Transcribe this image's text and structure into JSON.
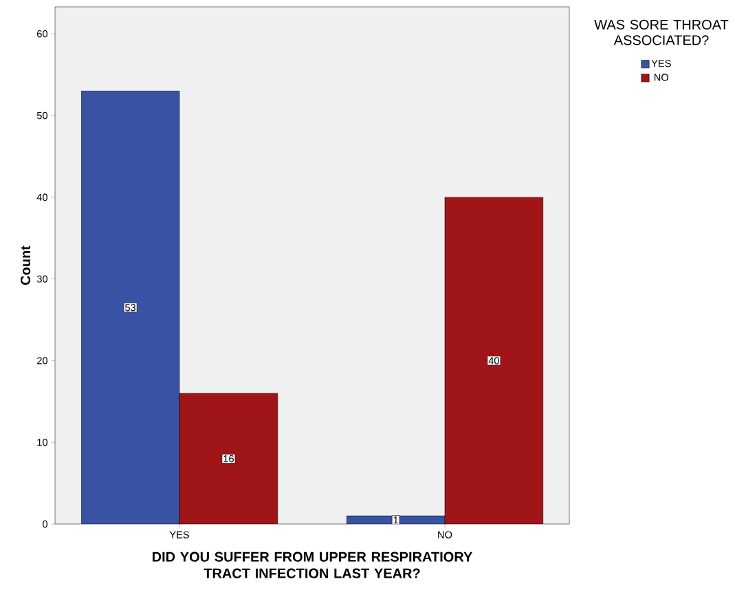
{
  "chart_data": {
    "type": "bar",
    "xlabel": "DID YOU SUFFER FROM UPPER RESPIRATIORY TRACT INFECTION LAST YEAR?",
    "ylabel": "Count",
    "legend_title": "WAS SORE THROAT ASSOCIATED?",
    "categories": [
      "YES",
      "NO"
    ],
    "series": [
      {
        "name": "YES",
        "color": "#3953a4",
        "values": [
          53,
          1
        ]
      },
      {
        "name": "NO",
        "color": "#a01518",
        "values": [
          16,
          40
        ]
      }
    ],
    "ylim": [
      0,
      63.3
    ],
    "yticks": [
      0,
      10,
      20,
      30,
      40,
      50,
      60
    ],
    "legend": "top right",
    "data_labels": true,
    "grid": false
  }
}
